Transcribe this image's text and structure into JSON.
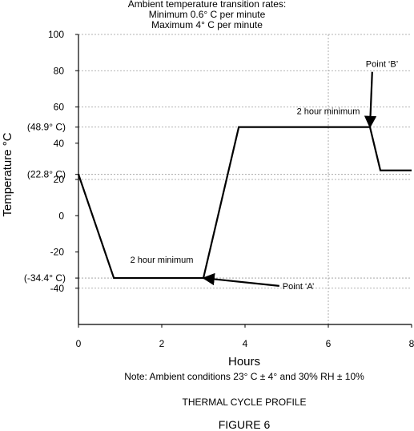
{
  "chart_data": {
    "type": "line",
    "header_lines": [
      "Ambient temperature transition rates:",
      "Minimum 0.6° C per minute",
      "Maximum 4° C per minute"
    ],
    "xlabel": "Hours",
    "ylabel": "Temperature °C",
    "xlim": [
      0,
      8
    ],
    "ylim": [
      -60,
      100
    ],
    "x_ticks": [
      0,
      2,
      4,
      6,
      8
    ],
    "y_ticks": [
      100,
      80,
      60,
      40,
      20,
      0,
      -20,
      -40
    ],
    "y_extra_labels": [
      {
        "value": 48.9,
        "text": "(48.9° C)"
      },
      {
        "value": 22.8,
        "text": "(22.8° C)"
      },
      {
        "value": -34.4,
        "text": "(-34.4°  C)"
      }
    ],
    "grid_y": [
      100,
      80,
      60,
      48.9,
      22.8,
      20,
      -34.4,
      -40
    ],
    "grid_x": [
      6
    ],
    "series": [
      {
        "x": [
          0,
          0.85,
          3.0,
          3.85,
          7.0,
          7.25,
          8.0
        ],
        "y": [
          22.8,
          -34.4,
          -34.4,
          48.9,
          48.9,
          25,
          25
        ]
      }
    ],
    "annotations": [
      {
        "text": "2 hour minimum",
        "x": 2.0,
        "y": -26
      },
      {
        "text": "2 hour minimum",
        "x": 6.0,
        "y": 56
      },
      {
        "text": "Point ‘A’",
        "text_x": 4.9,
        "text_y": -40.5,
        "arrow_to": [
          3.0,
          -34.4
        ]
      },
      {
        "text": "Point ‘B’",
        "text_x": 6.9,
        "text_y": 82,
        "arrow_to": [
          7.0,
          48.9
        ]
      }
    ],
    "note": "Note: Ambient conditions 23° C ± 4° and 30% RH ± 10%",
    "caption": "THERMAL CYCLE PROFILE",
    "figure_label": "FIGURE 6"
  }
}
